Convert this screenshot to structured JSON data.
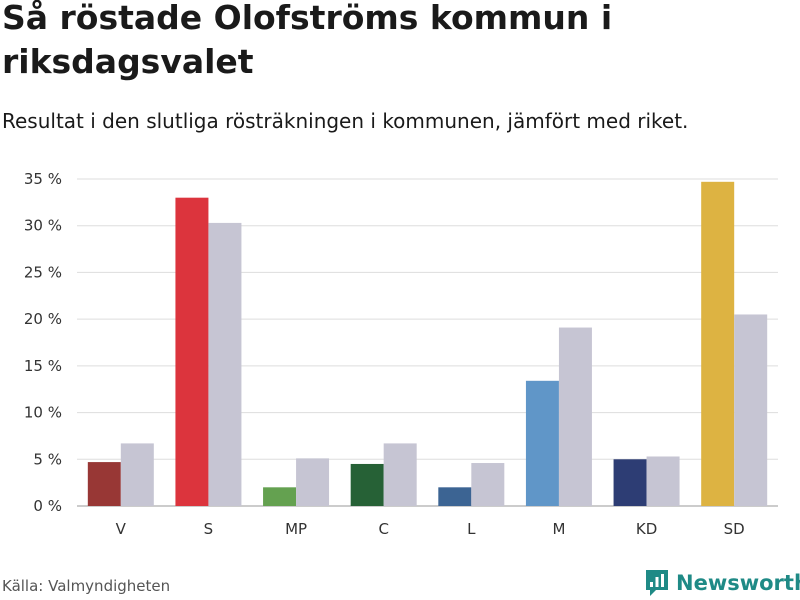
{
  "header": {
    "title": "Så röstade Olofströms kommun i riksdagsvalet",
    "subtitle": "Resultat i den slutliga rösträkningen i kommunen, jämfört med riket."
  },
  "footer": {
    "source": "Källa: Valmyndigheten",
    "brand": "Newsworthy"
  },
  "colors": {
    "nation": "#c6c5d3",
    "grid": "#dddddd",
    "brand": "#1f8a86"
  },
  "chart_data": {
    "type": "bar",
    "title": "Så röstade Olofströms kommun i riksdagsvalet",
    "subtitle": "Resultat i den slutliga rösträkningen i kommunen, jämfört med riket.",
    "xlabel": "",
    "ylabel": "",
    "ylim": [
      0,
      35
    ],
    "yticks": [
      0,
      5,
      10,
      15,
      20,
      25,
      30,
      35
    ],
    "ytick_labels": [
      "0 %",
      "5 %",
      "10 %",
      "15 %",
      "20 %",
      "25 %",
      "30 %",
      "35 %"
    ],
    "grid": true,
    "legend": "none",
    "categories": [
      "V",
      "S",
      "MP",
      "C",
      "L",
      "M",
      "KD",
      "SD"
    ],
    "series": [
      {
        "name": "Olofströms kommun",
        "values": [
          4.7,
          33.0,
          2.0,
          4.5,
          2.0,
          13.4,
          5.0,
          34.7
        ],
        "colors": [
          "#983735",
          "#dc343d",
          "#64a150",
          "#266136",
          "#3c6493",
          "#6096c8",
          "#2d3d74",
          "#ddb342"
        ]
      },
      {
        "name": "Riket",
        "values": [
          6.7,
          30.3,
          5.1,
          6.7,
          4.6,
          19.1,
          5.3,
          20.5
        ],
        "color": "#c6c5d3"
      }
    ]
  }
}
